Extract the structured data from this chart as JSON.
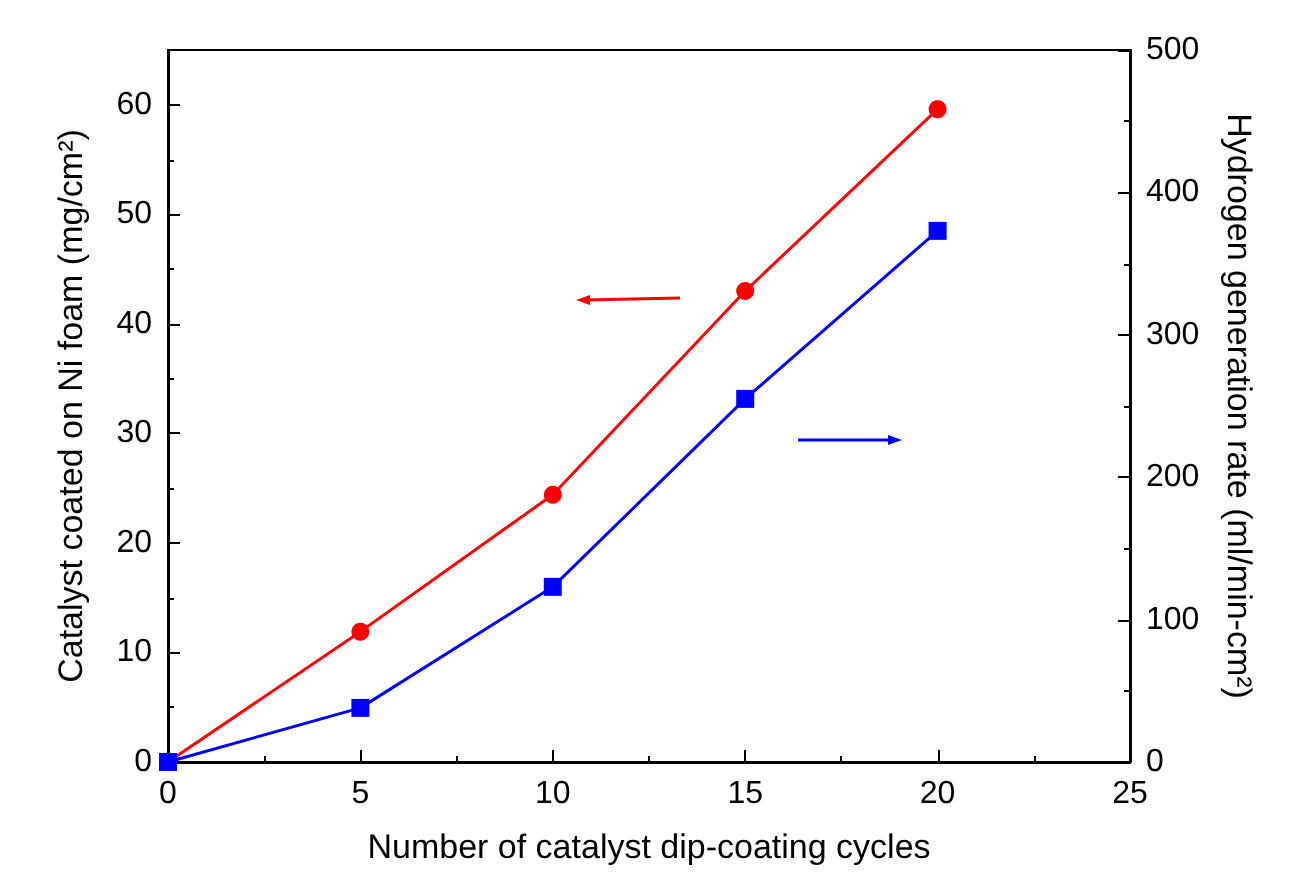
{
  "chart_data": {
    "type": "line",
    "xlabel": "Number of catalyst dip-coating cycles",
    "ylabel": "Catalyst coated on Ni foam (mg/cm²)",
    "y2label": "Hydrogen generation rate (ml/min-cm²)",
    "x": [
      0,
      5,
      10,
      15,
      20
    ],
    "series": [
      {
        "color": "#ff0000",
        "marker": "circle",
        "values": [
          0,
          11.9,
          24.4,
          43.0,
          59.6
        ]
      },
      {
        "color": "#0000ff",
        "marker": "square",
        "axis": "y2",
        "values": [
          0,
          38,
          123,
          255,
          373
        ]
      }
    ],
    "xlim": [
      0,
      25
    ],
    "xticks": [
      0,
      5,
      10,
      15,
      20,
      25
    ],
    "ylim": [
      0,
      65
    ],
    "yticks": [
      0,
      10,
      20,
      30,
      40,
      50,
      60
    ],
    "y2lim": [
      0,
      500
    ],
    "y2ticks": [
      0,
      100,
      200,
      300,
      400,
      500
    ]
  }
}
